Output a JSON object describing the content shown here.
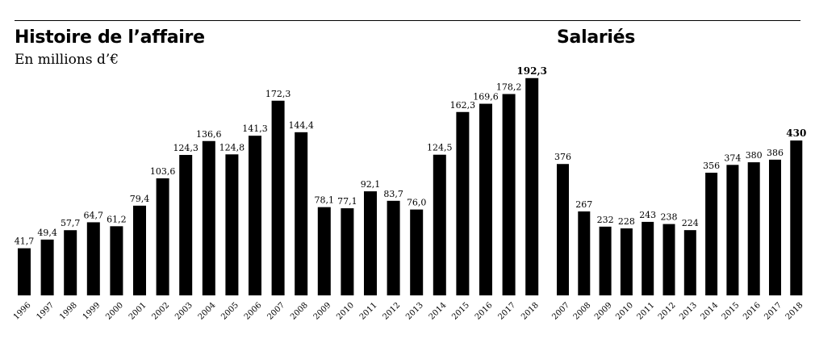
{
  "chart_data": [
    {
      "type": "bar",
      "title": "Histoire de l’affaire",
      "subtitle": "En millions d’€",
      "categories": [
        "1996",
        "1997",
        "1998",
        "1999",
        "2000",
        "2001",
        "2002",
        "2003",
        "2004",
        "2005",
        "2006",
        "2007",
        "2008",
        "2009",
        "2010",
        "2011",
        "2012",
        "2013",
        "2014",
        "2015",
        "2016",
        "2017",
        "2018"
      ],
      "values": [
        41.7,
        49.4,
        57.7,
        64.7,
        61.2,
        79.4,
        103.6,
        124.3,
        136.6,
        124.8,
        141.3,
        172.3,
        144.4,
        78.1,
        77.1,
        92.1,
        83.7,
        76.0,
        124.5,
        162.3,
        169.6,
        178.2,
        192.3
      ],
      "labels": [
        "41,7",
        "49,4",
        "57,7",
        "64,7",
        "61,2",
        "79,4",
        "103,6",
        "124,3",
        "136,6",
        "124,8",
        "141,3",
        "172,3",
        "144,4",
        "78,1",
        "77,1",
        "92,1",
        "83,7",
        "76,0",
        "124,5",
        "162,3",
        "169,6",
        "178,2",
        "192,3"
      ],
      "highlight_index": 22,
      "bar_color": "#000000",
      "grid": false
    },
    {
      "type": "bar",
      "title": "Salariés",
      "categories": [
        "2007",
        "2008",
        "2009",
        "2010",
        "2011",
        "2012",
        "2013",
        "2014",
        "2015",
        "2016",
        "2017",
        "2018"
      ],
      "values": [
        376,
        267,
        232,
        228,
        243,
        238,
        224,
        356,
        374,
        380,
        386,
        430
      ],
      "labels": [
        "376",
        "267",
        "232",
        "228",
        "243",
        "238",
        "224",
        "356",
        "374",
        "380",
        "386",
        "430"
      ],
      "highlight_index": 11,
      "bar_color": "#000000",
      "grid": false
    }
  ]
}
